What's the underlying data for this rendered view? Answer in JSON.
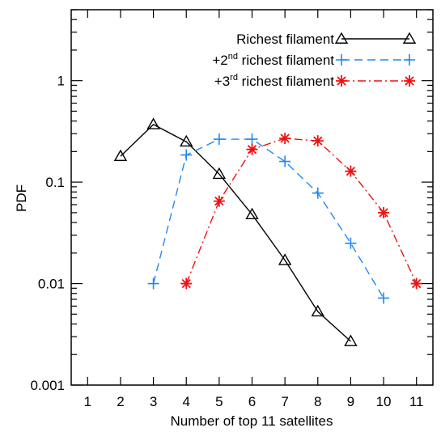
{
  "chart_data": {
    "type": "line",
    "xlabel": "Number of top 11 satellites",
    "ylabel": "PDF",
    "xlim": [
      0.5,
      11.5
    ],
    "ylim": [
      0.001,
      5
    ],
    "yscale": "log",
    "grid": false,
    "legend_position": "top-right",
    "x_ticks": [
      1,
      2,
      3,
      4,
      5,
      6,
      7,
      8,
      9,
      10,
      11
    ],
    "x_tick_labels": [
      "1",
      "2",
      "3",
      "4",
      "5",
      "6",
      "7",
      "8",
      "9",
      "10",
      "11"
    ],
    "y_ticks": [
      0.001,
      0.01,
      0.1,
      1
    ],
    "y_tick_labels": [
      "0.001",
      "0.01",
      "0.1",
      "1"
    ],
    "series": [
      {
        "name": "Richest filament",
        "legend_prefix": "",
        "legend_sup": "",
        "legend_suffix": "Richest filament",
        "color": "#000000",
        "dash": "",
        "marker": "triangle",
        "x": [
          2,
          3,
          4,
          5,
          6,
          7,
          8,
          9
        ],
        "y": [
          0.18,
          0.37,
          0.25,
          0.12,
          0.048,
          0.017,
          0.0053,
          0.0027
        ]
      },
      {
        "name": "+2nd richest filament",
        "legend_prefix": "+2",
        "legend_sup": "nd",
        "legend_suffix": " richest filament",
        "color": "#2288ee",
        "dash": "10,6",
        "marker": "plus",
        "x": [
          3,
          4,
          5,
          6,
          7,
          8,
          9,
          10
        ],
        "y": [
          0.01,
          0.185,
          0.265,
          0.265,
          0.16,
          0.078,
          0.025,
          0.0072
        ]
      },
      {
        "name": "+3rd richest filament",
        "legend_prefix": "+3",
        "legend_sup": "rd",
        "legend_suffix": " richest filament",
        "color": "#ee1111",
        "dash": "10,4,2,4",
        "marker": "asterisk",
        "x": [
          4,
          5,
          6,
          7,
          8,
          9,
          10,
          11
        ],
        "y": [
          0.01,
          0.065,
          0.21,
          0.27,
          0.255,
          0.128,
          0.05,
          0.01
        ]
      }
    ]
  }
}
